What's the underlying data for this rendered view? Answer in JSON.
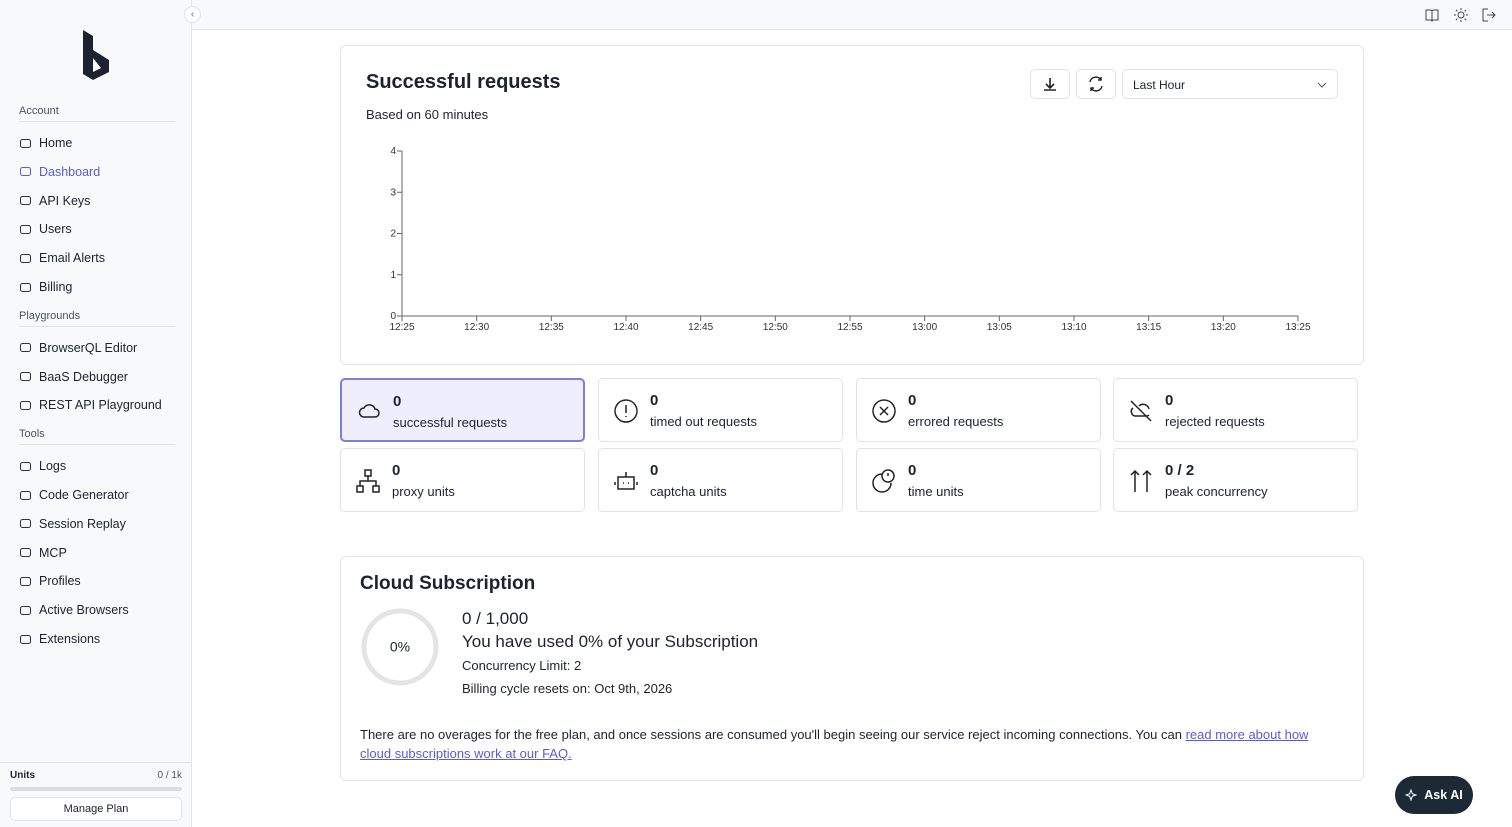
{
  "sidebar": {
    "sections": [
      {
        "title": "Account",
        "items": [
          {
            "label": "Home"
          },
          {
            "label": "Dashboard",
            "active": true
          },
          {
            "label": "API Keys"
          },
          {
            "label": "Users"
          },
          {
            "label": "Email Alerts"
          },
          {
            "label": "Billing"
          }
        ]
      },
      {
        "title": "Playgrounds",
        "items": [
          {
            "label": "BrowserQL Editor"
          },
          {
            "label": "BaaS Debugger"
          },
          {
            "label": "REST API Playground"
          }
        ]
      },
      {
        "title": "Tools",
        "items": [
          {
            "label": "Logs"
          },
          {
            "label": "Code Generator"
          },
          {
            "label": "Session Replay"
          },
          {
            "label": "MCP"
          },
          {
            "label": "Profiles"
          },
          {
            "label": "Active Browsers"
          },
          {
            "label": "Extensions"
          }
        ]
      }
    ],
    "units": {
      "label": "Units",
      "value": "0 / 1k"
    },
    "manage_plan": "Manage Plan"
  },
  "requests_card": {
    "title": "Successful requests",
    "subtitle": "Based on 60 minutes",
    "range": "Last Hour",
    "chart": {
      "ylim": [
        0,
        4
      ],
      "yticks": [
        0,
        1,
        2,
        3,
        4
      ],
      "xticks": [
        "12:25",
        "12:30",
        "12:35",
        "12:40",
        "12:45",
        "12:50",
        "12:55",
        "13:00",
        "13:05",
        "13:10",
        "13:15",
        "13:20",
        "13:25"
      ]
    }
  },
  "stats": [
    {
      "value": 0,
      "label": "successful requests",
      "selected": true
    },
    {
      "value": 0,
      "label": "timed out requests"
    },
    {
      "value": 0,
      "label": "errored requests"
    },
    {
      "value": 0,
      "label": "rejected requests"
    },
    {
      "value": 0,
      "label": "proxy units"
    },
    {
      "value": 0,
      "label": "captcha units"
    },
    {
      "value": 0,
      "label": "time units"
    },
    {
      "value": "0 / 2",
      "label": "peak concurrency"
    }
  ],
  "subscription": {
    "title": "Cloud Subscription",
    "usage": {
      "value": 0,
      "label": "0%"
    },
    "count": "0 / 1,000",
    "headline": "You have used 0% of your Subscription",
    "concurrency": "Concurrency Limit: 2",
    "billing": "Billing cycle resets on: Oct 9th, 2026",
    "note": "There are no overages for the free plan, and once sessions are consumed you'll begin seeing our service reject incoming connections. You can ",
    "link": "read more about how cloud subscriptions work at our FAQ."
  },
  "ask_ai": "Ask AI"
}
